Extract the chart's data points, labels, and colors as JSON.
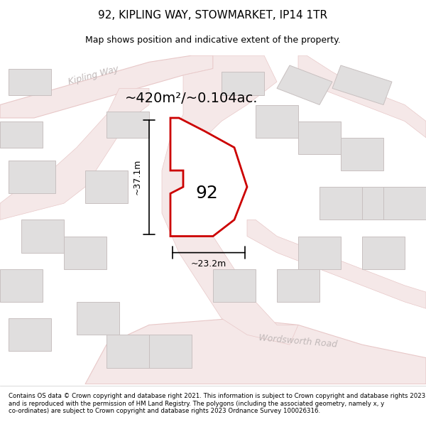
{
  "title": "92, KIPLING WAY, STOWMARKET, IP14 1TR",
  "subtitle": "Map shows position and indicative extent of the property.",
  "area_label": "~420m²/~0.104ac.",
  "plot_number": "92",
  "dim_width": "~23.2m",
  "dim_height": "~37.1m",
  "street_kipling": "Kipling Way",
  "street_wordsworth": "Wordsworth Road",
  "footer": "Contains OS data © Crown copyright and database right 2021. This information is subject to Crown copyright and database rights 2023 and is reproduced with the permission of HM Land Registry. The polygons (including the associated geometry, namely x, y co-ordinates) are subject to Crown copyright and database rights 2023 Ordnance Survey 100026316.",
  "bg_color": "#f5f3f3",
  "map_bg": "#f8f6f6",
  "plot_fill": "#ffffff",
  "plot_edge": "#cc0000",
  "road_color": "#f0c0c0",
  "road_stroke": "#e89090",
  "building_fill": "#e0dede",
  "building_stroke": "#d0c8c8",
  "dim_color": "#000000",
  "text_gray": "#c0b8b8"
}
